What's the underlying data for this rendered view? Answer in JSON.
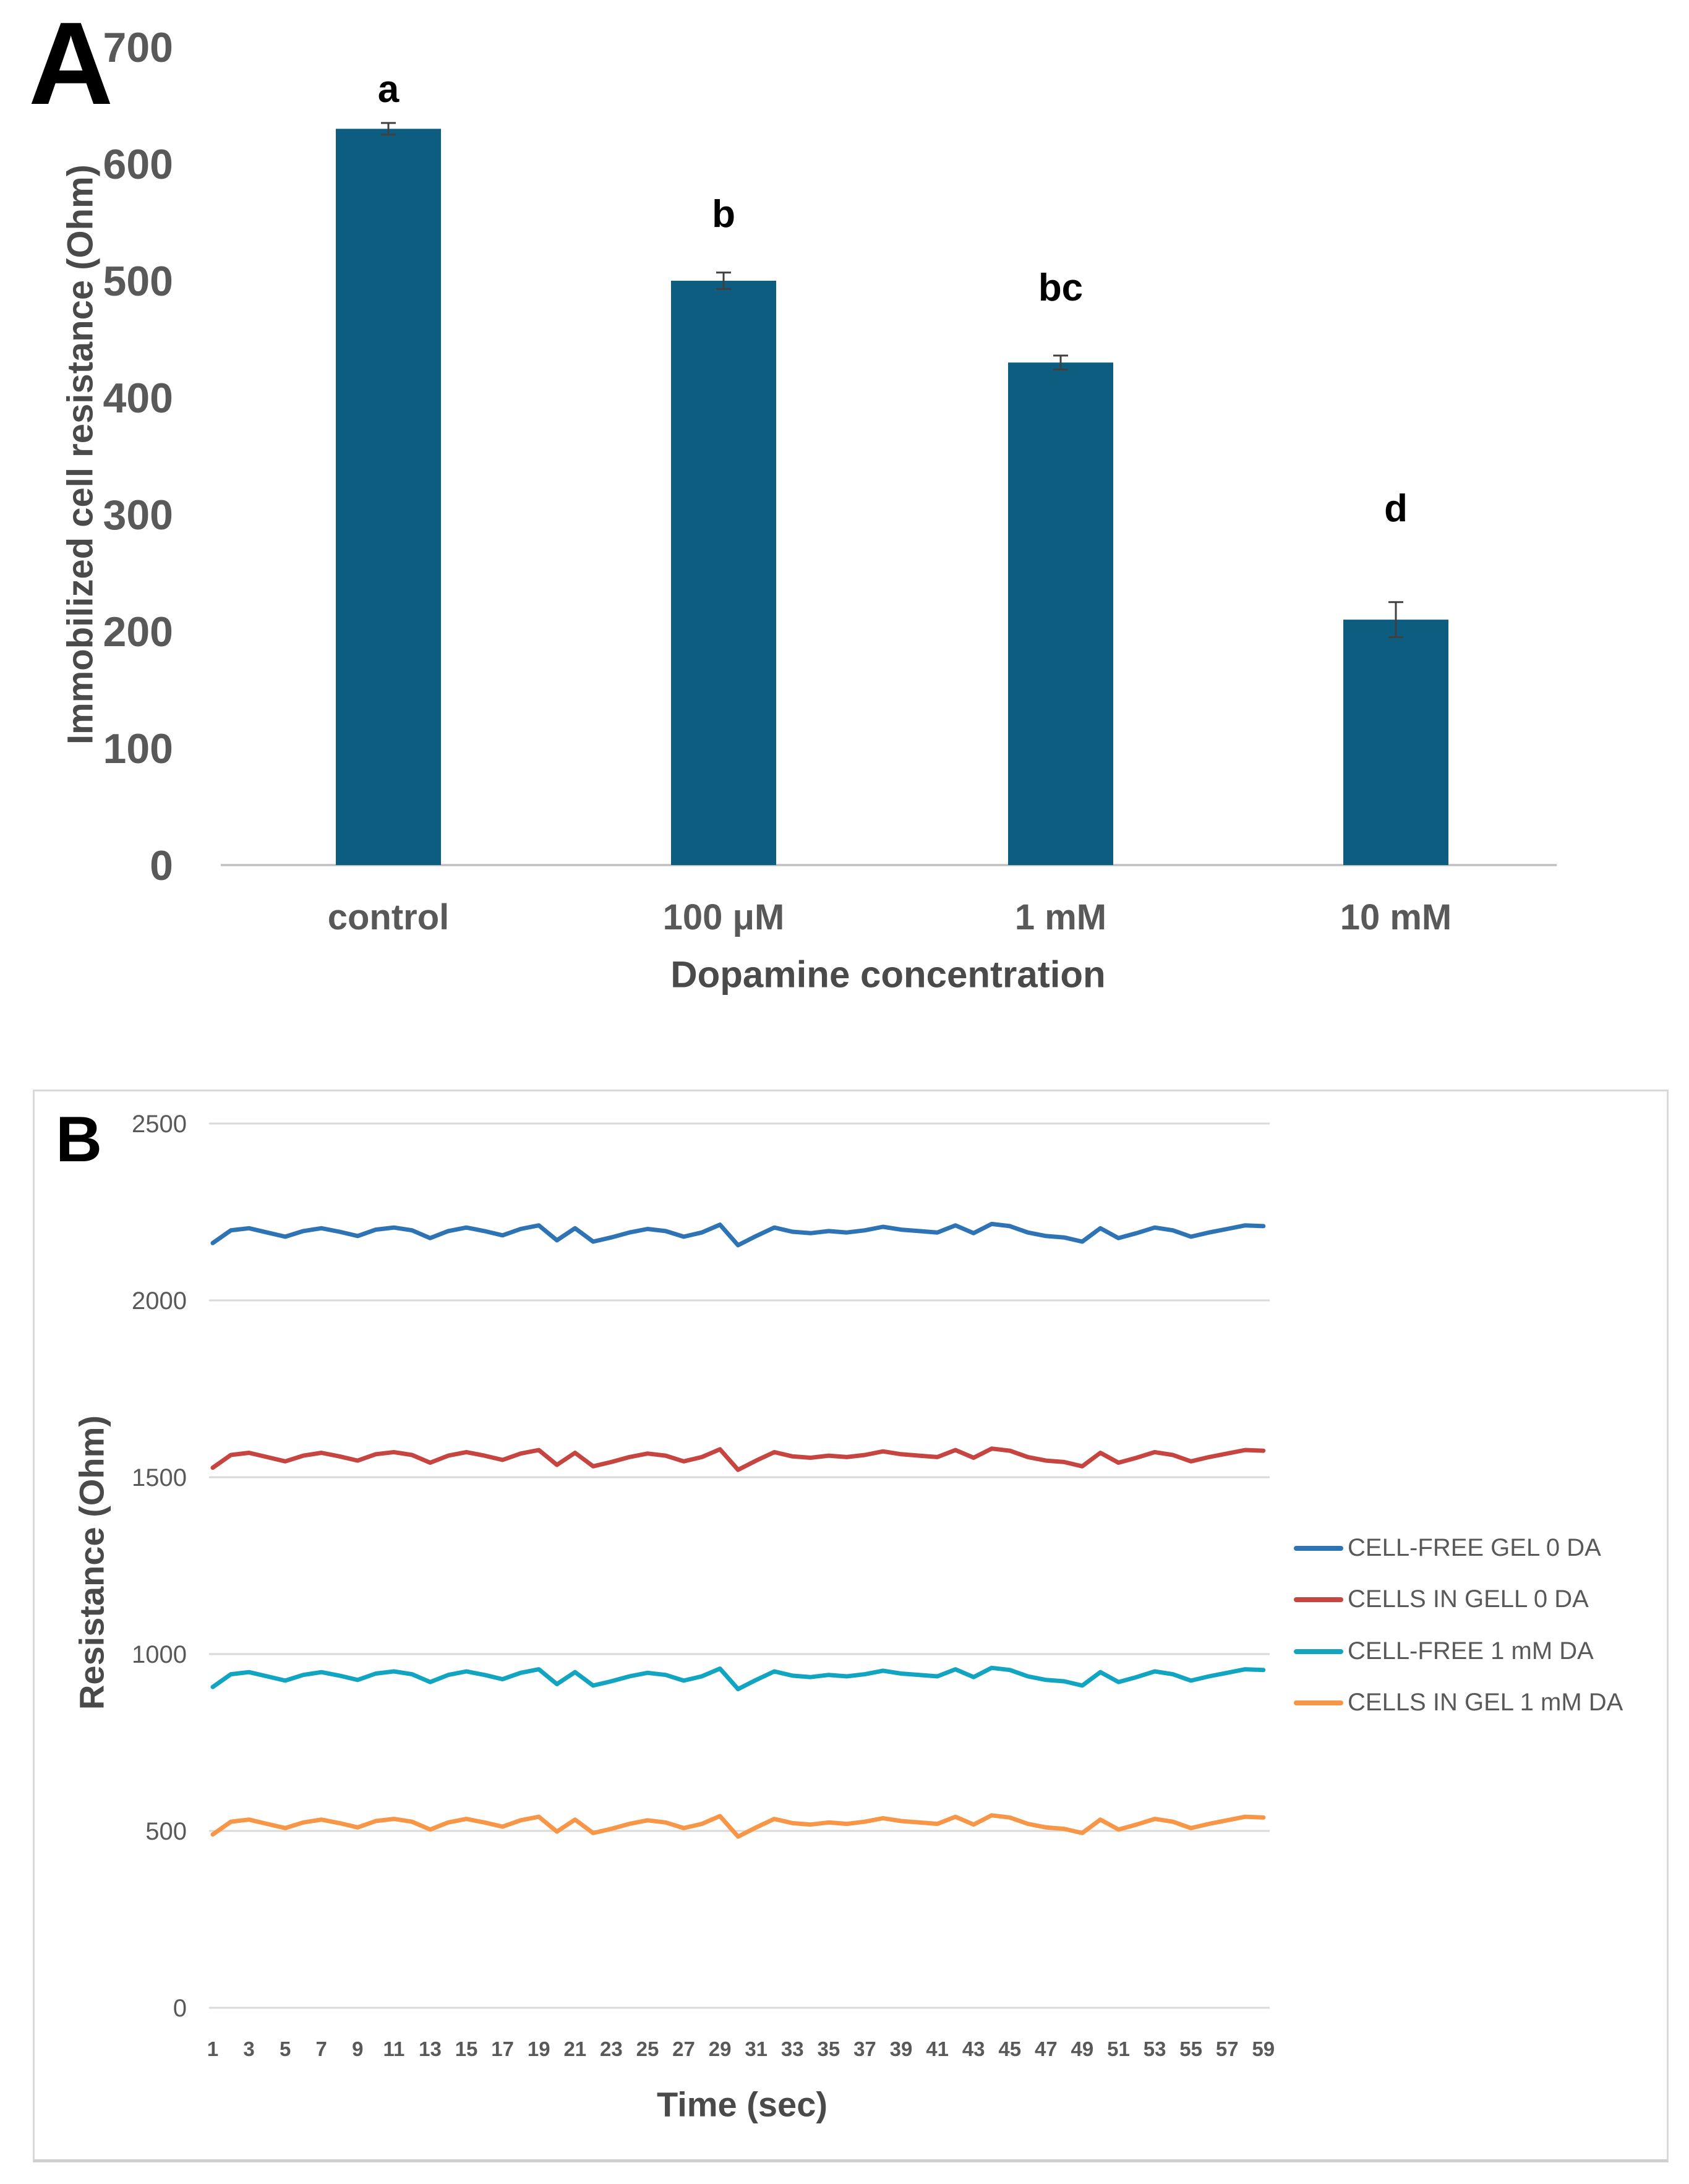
{
  "panels": [
    {
      "label": "A"
    },
    {
      "label": "B"
    }
  ],
  "colors": {
    "bar": "#0D5D80",
    "axis_line": "#BFBFBF",
    "gridline": "#D9D9D9",
    "tick_text": "#595959",
    "title_text": "#4A4A4A",
    "sig_letter_text": "#000000",
    "error_bar": "#404040",
    "panel_border": "#D9D9D9",
    "background": "#FFFFFF"
  },
  "chart_data": [
    {
      "type": "bar",
      "panel": "A",
      "categories": [
        "control",
        "100 μM",
        "1 mM",
        "10 mM"
      ],
      "values": [
        630,
        500,
        430,
        210
      ],
      "error_bars": [
        5,
        7,
        6,
        15
      ],
      "sig_letters": [
        "a",
        "b",
        "bc",
        "d"
      ],
      "title": "",
      "xlabel": "Dopamine concentration",
      "ylabel": "Immobilized cell resistance (Ohm)",
      "ylim": [
        0,
        700
      ],
      "yticks": [
        0,
        100,
        200,
        300,
        400,
        500,
        600,
        700
      ],
      "bar_color": "#0D5D80",
      "grid": false,
      "legend_position": "none"
    },
    {
      "type": "line",
      "panel": "B",
      "title": "",
      "xlabel": "Time (sec)",
      "ylabel": "Resistance (Ohm)",
      "ylim": [
        0,
        2500
      ],
      "yticks": [
        0,
        500,
        1000,
        1500,
        2000,
        2500
      ],
      "grid": true,
      "legend_position": "right",
      "x": [
        1,
        2,
        3,
        4,
        5,
        6,
        7,
        8,
        9,
        10,
        11,
        12,
        13,
        14,
        15,
        16,
        17,
        18,
        19,
        20,
        21,
        22,
        23,
        24,
        25,
        26,
        27,
        28,
        29,
        30,
        31,
        32,
        33,
        34,
        35,
        36,
        37,
        38,
        39,
        40,
        41,
        42,
        43,
        44,
        45,
        46,
        47,
        48,
        49,
        50,
        51,
        52,
        53,
        54,
        55,
        56,
        57,
        58,
        59
      ],
      "x_tick_labels": [
        1,
        3,
        5,
        7,
        9,
        11,
        13,
        15,
        17,
        19,
        21,
        23,
        25,
        27,
        29,
        31,
        33,
        35,
        37,
        39,
        41,
        43,
        45,
        47,
        49,
        51,
        53,
        55,
        57,
        59
      ],
      "series": [
        {
          "name": "CELL-FREE GEL 0 DA",
          "color": "#2E74B5",
          "values": [
            2162,
            2198,
            2204,
            2192,
            2180,
            2196,
            2204,
            2194,
            2182,
            2200,
            2206,
            2198,
            2176,
            2196,
            2206,
            2196,
            2184,
            2202,
            2212,
            2170,
            2204,
            2166,
            2178,
            2192,
            2202,
            2196,
            2180,
            2192,
            2214,
            2156,
            2182,
            2206,
            2194,
            2190,
            2196,
            2192,
            2198,
            2208,
            2200,
            2196,
            2192,
            2212,
            2190,
            2216,
            2210,
            2192,
            2182,
            2178,
            2166,
            2204,
            2176,
            2190,
            2206,
            2198,
            2180,
            2192,
            2202,
            2212,
            2210
          ]
        },
        {
          "name": "CELLS IN GELL 0 DA",
          "color": "#C64540",
          "values": [
            1527,
            1563,
            1569,
            1557,
            1545,
            1561,
            1569,
            1559,
            1547,
            1565,
            1571,
            1563,
            1541,
            1561,
            1571,
            1561,
            1549,
            1567,
            1577,
            1535,
            1569,
            1531,
            1543,
            1557,
            1567,
            1561,
            1545,
            1557,
            1579,
            1521,
            1547,
            1571,
            1559,
            1555,
            1561,
            1557,
            1563,
            1573,
            1565,
            1561,
            1557,
            1577,
            1555,
            1581,
            1575,
            1557,
            1547,
            1543,
            1531,
            1569,
            1541,
            1555,
            1571,
            1563,
            1545,
            1557,
            1567,
            1577,
            1575
          ]
        },
        {
          "name": "CELL-FREE 1 mM DA",
          "color": "#12A5C2",
          "values": [
            907,
            943,
            949,
            937,
            925,
            941,
            949,
            939,
            927,
            945,
            951,
            943,
            921,
            941,
            951,
            941,
            929,
            947,
            957,
            915,
            949,
            911,
            923,
            937,
            947,
            941,
            925,
            937,
            959,
            901,
            927,
            951,
            939,
            935,
            941,
            937,
            943,
            953,
            945,
            941,
            937,
            957,
            935,
            961,
            955,
            937,
            927,
            923,
            911,
            949,
            921,
            935,
            951,
            943,
            925,
            937,
            947,
            957,
            955
          ]
        },
        {
          "name": "CELLS IN GEL 1 mM DA",
          "color": "#F79646",
          "values": [
            490,
            526,
            532,
            520,
            508,
            524,
            532,
            522,
            510,
            528,
            534,
            526,
            504,
            524,
            534,
            524,
            512,
            530,
            540,
            498,
            532,
            494,
            506,
            520,
            530,
            524,
            508,
            520,
            542,
            484,
            510,
            534,
            522,
            518,
            524,
            520,
            526,
            536,
            528,
            524,
            520,
            540,
            518,
            544,
            538,
            520,
            510,
            506,
            494,
            532,
            504,
            518,
            534,
            526,
            508,
            520,
            530,
            540,
            538
          ]
        }
      ]
    }
  ]
}
